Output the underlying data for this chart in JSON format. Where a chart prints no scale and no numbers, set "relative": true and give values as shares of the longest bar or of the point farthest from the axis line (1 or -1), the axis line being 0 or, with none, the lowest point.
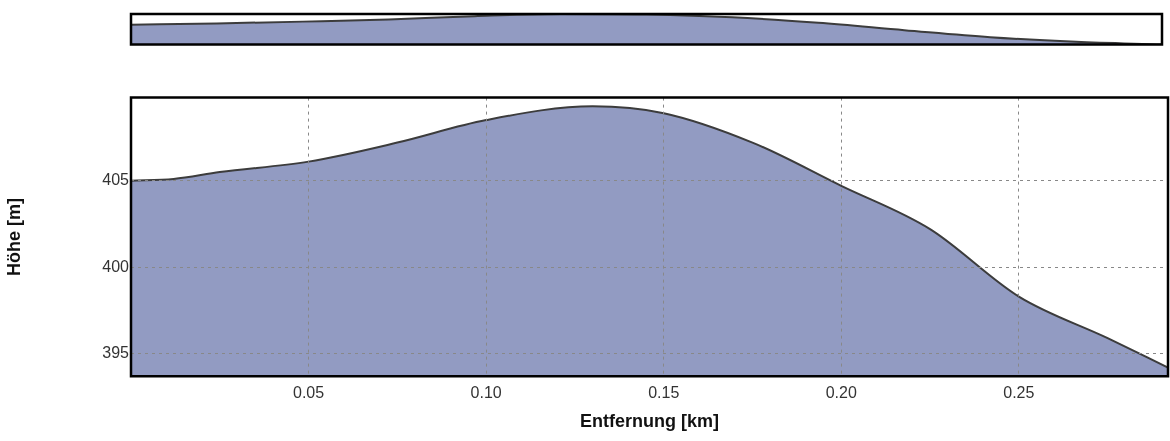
{
  "chart_data": [
    {
      "type": "area",
      "relative": true,
      "categories": [
        null,
        null,
        null,
        null,
        null,
        null,
        null,
        null,
        null,
        null,
        null,
        null,
        null
      ],
      "color": "#929bc2",
      "values": [
        0.65,
        0.69,
        0.75,
        0.82,
        0.93,
        1,
        0.98,
        0.89,
        0.71,
        0.47,
        0.24,
        0.09,
        0
      ]
    },
    {
      "type": "area",
      "xlabel": "Entfernung [km]",
      "ylabel": "Höhe [m]",
      "color": "#929bc2",
      "grid": true,
      "x": [
        0,
        0.012,
        0.025,
        0.05,
        0.075,
        0.1,
        0.13,
        0.15,
        0.175,
        0.2,
        0.225,
        0.25,
        0.275,
        0.292
      ],
      "values": [
        405,
        405.1,
        405.5,
        406.1,
        407.2,
        408.5,
        409.3,
        408.9,
        407.2,
        404.7,
        402.2,
        398.3,
        395.9,
        394.2
      ],
      "xlim": [
        0,
        0.292
      ],
      "xticks": [
        0.05,
        {
          "value": 0.1,
          "label": "0.10"
        },
        0.15,
        {
          "value": 0.2,
          "label": "0.20"
        },
        0.25
      ],
      "ylim": [
        393.7,
        409.8
      ],
      "yticks": [
        395,
        400,
        405
      ]
    }
  ]
}
